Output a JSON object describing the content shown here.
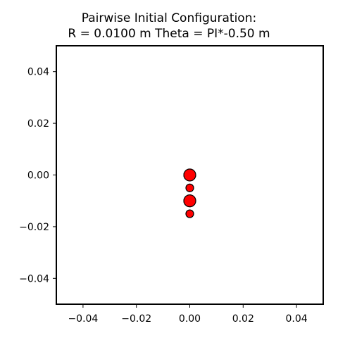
{
  "chart_data": {
    "type": "scatter",
    "title": [
      "Pairwise Initial Configuration:",
      "R = 0.0100 m Theta = PI*-0.50 m"
    ],
    "xlim": [
      -0.05,
      0.05
    ],
    "ylim": [
      -0.05,
      0.05
    ],
    "xticks": [
      -0.04,
      -0.02,
      0.0,
      0.02,
      0.04
    ],
    "xtick_labels": [
      "−0.04",
      "−0.02",
      "0.00",
      "0.02",
      "0.04"
    ],
    "yticks": [
      -0.04,
      -0.02,
      0.0,
      0.02,
      0.04
    ],
    "ytick_labels": [
      "−0.04",
      "−0.02",
      "0.00",
      "0.02",
      "0.04"
    ],
    "grid": false,
    "points": [
      {
        "x": 0.0,
        "y": 0.0,
        "size": "large"
      },
      {
        "x": 0.0,
        "y": -0.005,
        "size": "small"
      },
      {
        "x": 0.0,
        "y": -0.01,
        "size": "large"
      },
      {
        "x": 0.0,
        "y": -0.015,
        "size": "small"
      }
    ],
    "marker_color": "#ff0000",
    "marker_edge_color": "#000000"
  }
}
